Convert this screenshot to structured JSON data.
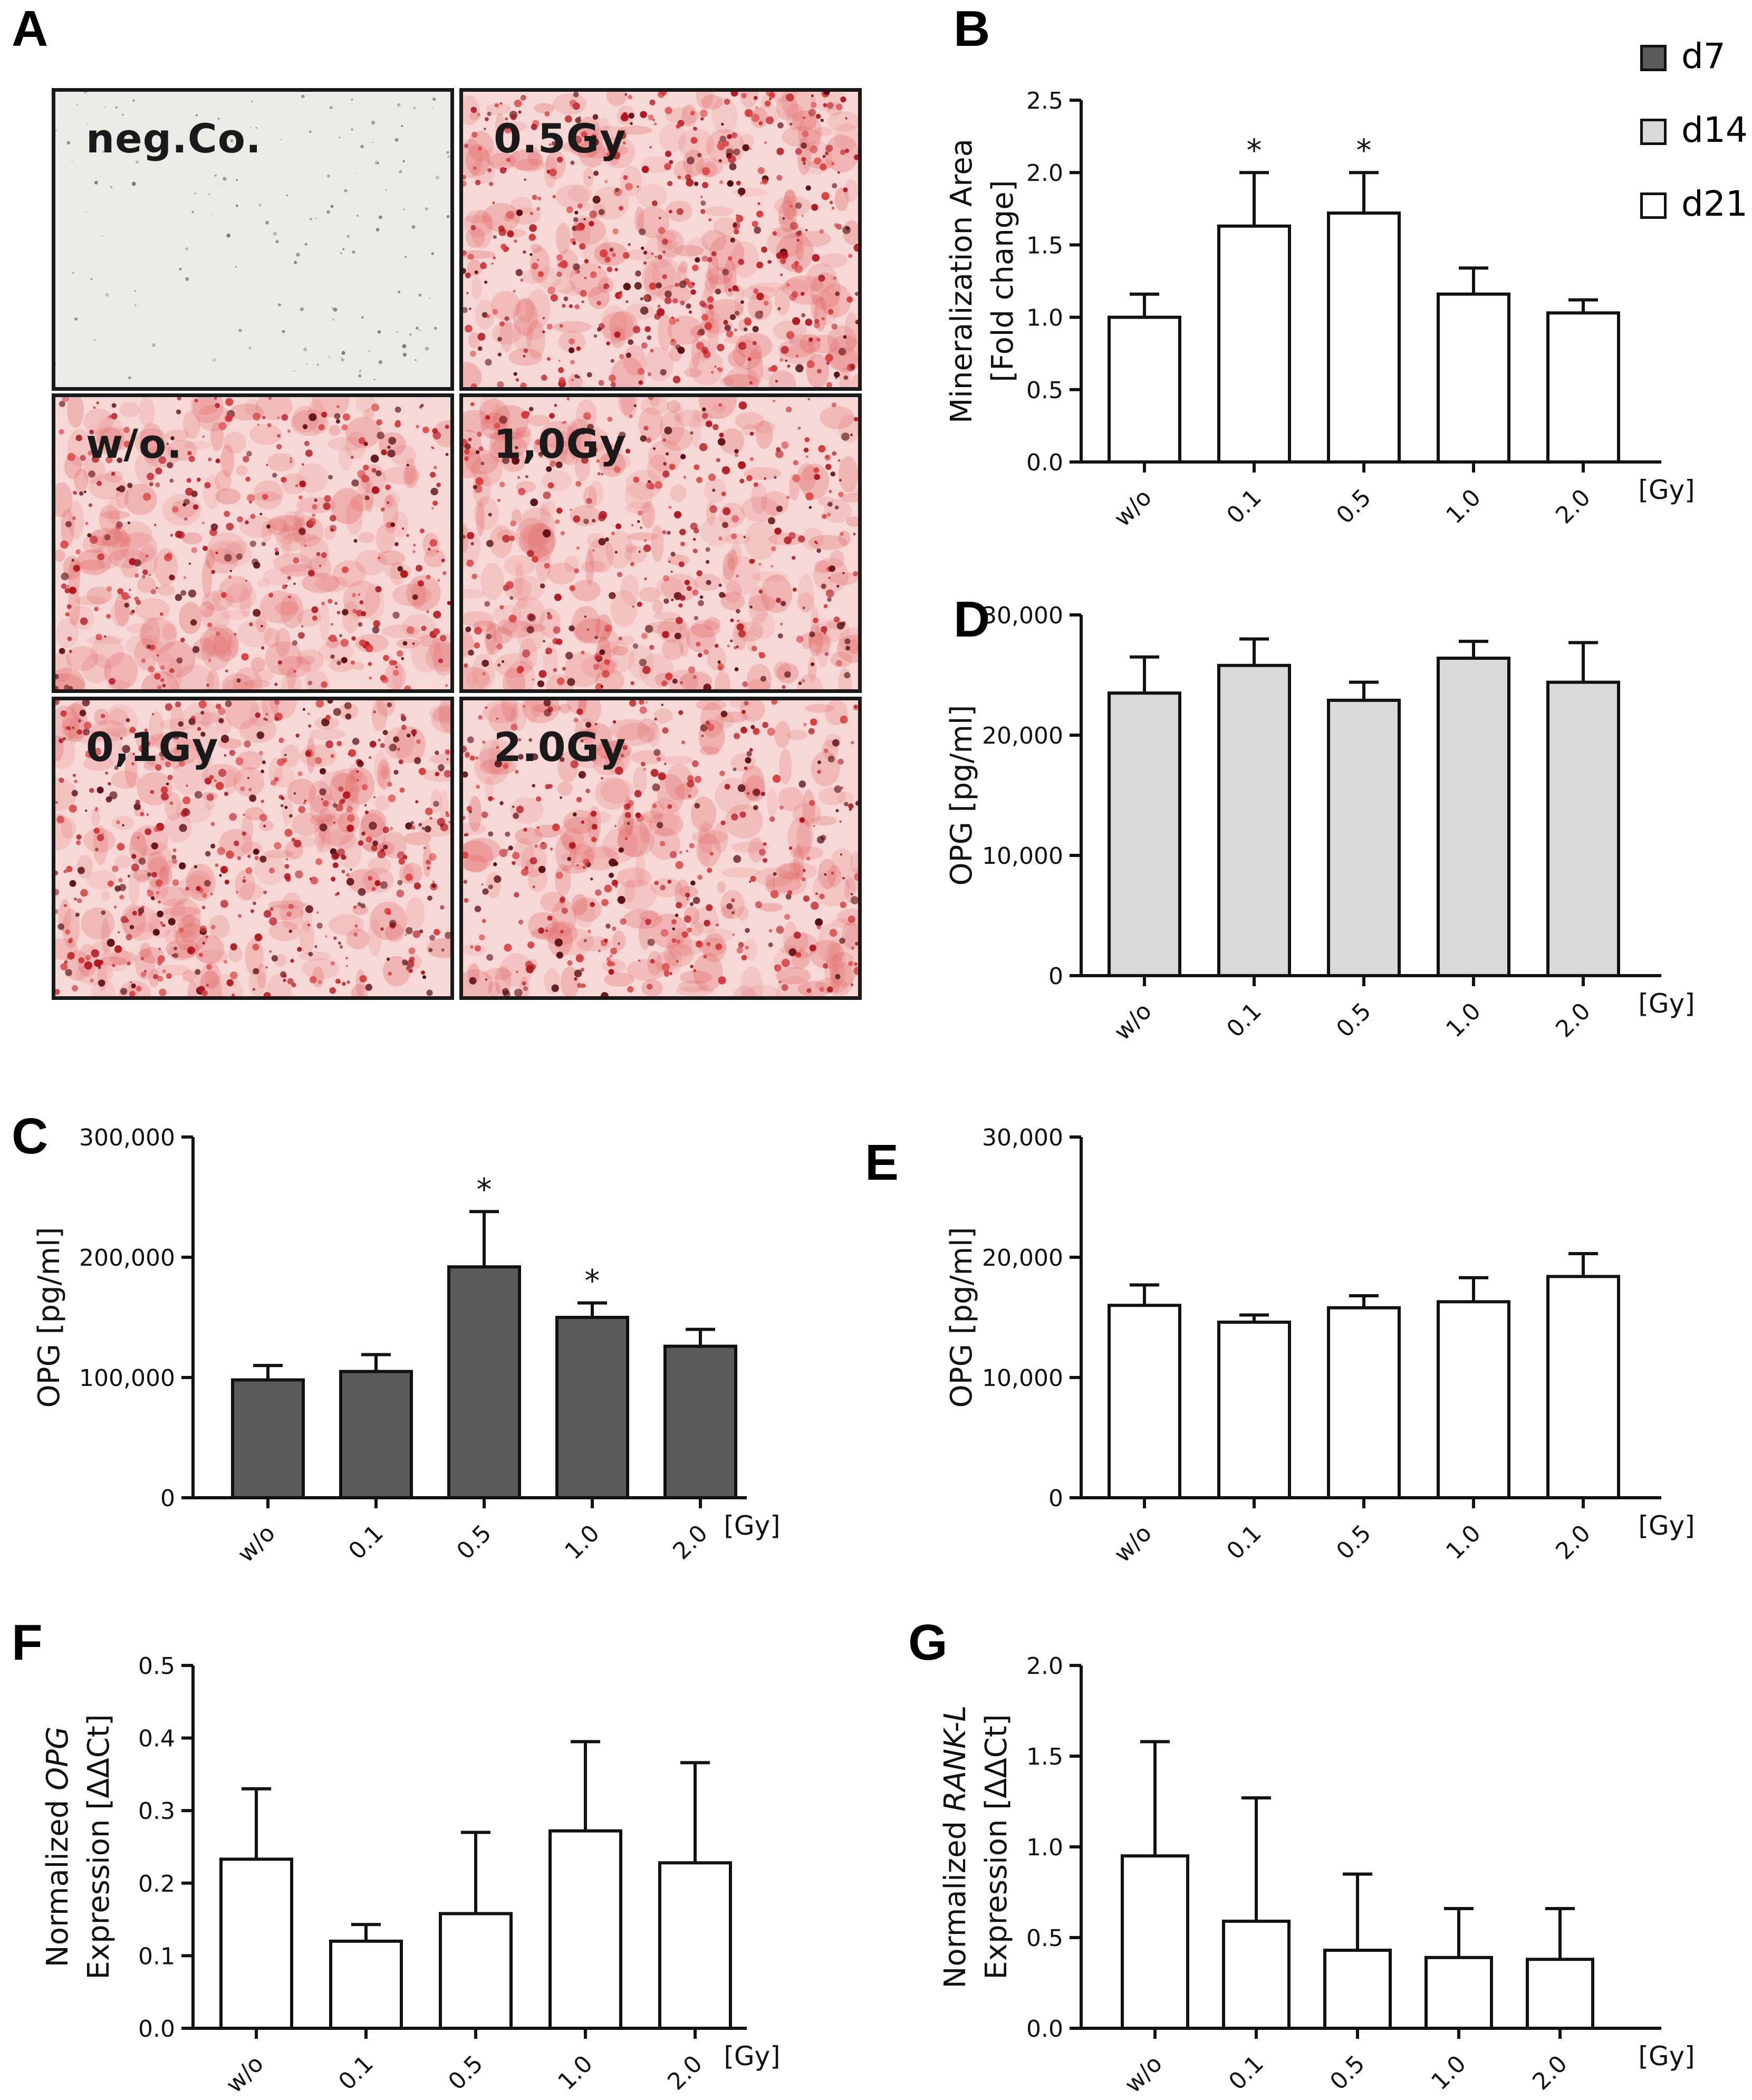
{
  "panel_letters": [
    "A",
    "B",
    "C",
    "D",
    "E",
    "F",
    "G"
  ],
  "micrographs": [
    {
      "label": "neg.Co.",
      "stain": "none"
    },
    {
      "label": "0.5Gy",
      "stain": "alizarin-heavy"
    },
    {
      "label": "w/o.",
      "stain": "alizarin-medium"
    },
    {
      "label": "1,0Gy",
      "stain": "alizarin-medium"
    },
    {
      "label": "0,1Gy",
      "stain": "alizarin-heavy"
    },
    {
      "label": "2.0Gy",
      "stain": "alizarin-medium"
    }
  ],
  "legend": [
    {
      "label": "d7",
      "color": "#5a5a5a"
    },
    {
      "label": "d14",
      "color": "#d9d9d9"
    },
    {
      "label": "d21",
      "color": "#ffffff"
    }
  ],
  "chart_data": [
    {
      "panel": "B",
      "type": "bar",
      "categories": [
        "w/o",
        "0.1",
        "0.5",
        "1.0",
        "2.0"
      ],
      "unit_label": "[Gy]",
      "values": [
        1.0,
        1.63,
        1.72,
        1.16,
        1.03
      ],
      "errors": [
        0.16,
        0.37,
        0.28,
        0.18,
        0.09
      ],
      "significance": [
        "",
        "*",
        "*",
        "",
        ""
      ],
      "ylabel": [
        "Mineralization Area",
        "[Fold change]"
      ],
      "ylim": [
        0,
        2.5
      ],
      "yticks": [
        "0.0",
        "0.5",
        "1.0",
        "1.5",
        "2.0",
        "2.5"
      ],
      "bar_color": "#ffffff",
      "series": "d21"
    },
    {
      "panel": "D",
      "type": "bar",
      "categories": [
        "w/o",
        "0.1",
        "0.5",
        "1.0",
        "2.0"
      ],
      "unit_label": "[Gy]",
      "values": [
        23500,
        25800,
        22900,
        26400,
        24400
      ],
      "errors": [
        3000,
        2200,
        1500,
        1400,
        3300
      ],
      "significance": [
        "",
        "",
        "",
        "",
        ""
      ],
      "ylabel": [
        "OPG [pg/ml]"
      ],
      "ylim": [
        0,
        30000
      ],
      "yticks": [
        "0",
        "10,000",
        "20,000",
        "30,000"
      ],
      "bar_color": "#d9d9d9",
      "series": "d14"
    },
    {
      "panel": "C",
      "type": "bar",
      "categories": [
        "w/o",
        "0.1",
        "0.5",
        "1.0",
        "2.0"
      ],
      "unit_label": "[Gy]",
      "values": [
        98000,
        105000,
        192000,
        150000,
        126000
      ],
      "errors": [
        12000,
        14000,
        46000,
        12000,
        14000
      ],
      "significance": [
        "",
        "",
        "*",
        "*",
        ""
      ],
      "ylabel": [
        "OPG [pg/ml]"
      ],
      "ylim": [
        0,
        300000
      ],
      "yticks": [
        "0",
        "100,000",
        "200,000",
        "300,000"
      ],
      "bar_color": "#5a5a5a",
      "series": "d7"
    },
    {
      "panel": "E",
      "type": "bar",
      "categories": [
        "w/o",
        "0.1",
        "0.5",
        "1.0",
        "2.0"
      ],
      "unit_label": "[Gy]",
      "values": [
        16000,
        14600,
        15800,
        16300,
        18400
      ],
      "errors": [
        1700,
        600,
        1000,
        2000,
        1900
      ],
      "significance": [
        "",
        "",
        "",
        "",
        ""
      ],
      "ylabel": [
        "OPG [pg/ml]"
      ],
      "ylim": [
        0,
        30000
      ],
      "yticks": [
        "0",
        "10,000",
        "20,000",
        "30,000"
      ],
      "bar_color": "#ffffff",
      "series": "d21"
    },
    {
      "panel": "F",
      "type": "bar",
      "categories": [
        "w/o",
        "0.1",
        "0.5",
        "1.0",
        "2.0"
      ],
      "unit_label": "[Gy]",
      "values": [
        0.233,
        0.12,
        0.158,
        0.272,
        0.228
      ],
      "errors": [
        0.097,
        0.023,
        0.112,
        0.123,
        0.138
      ],
      "significance": [
        "",
        "",
        "",
        "",
        ""
      ],
      "ylabel": [
        "Normalized OPG",
        "Expression [ΔΔCt]"
      ],
      "ylabel_italic": "OPG",
      "ylim": [
        0,
        0.5
      ],
      "yticks": [
        "0.0",
        "0.1",
        "0.2",
        "0.3",
        "0.4",
        "0.5"
      ],
      "bar_color": "#ffffff",
      "series": "d21"
    },
    {
      "panel": "G",
      "type": "bar",
      "categories": [
        "w/o",
        "0.1",
        "0.5",
        "1.0",
        "2.0"
      ],
      "unit_label": "[Gy]",
      "values": [
        0.95,
        0.59,
        0.43,
        0.39,
        0.38
      ],
      "errors": [
        0.63,
        0.68,
        0.42,
        0.27,
        0.28
      ],
      "significance": [
        "",
        "",
        "",
        "",
        ""
      ],
      "ylabel": [
        "Normalized RANK-L",
        "Expression [ΔΔCt]"
      ],
      "ylabel_italic": "RANK-L",
      "ylim": [
        0,
        2.0
      ],
      "yticks": [
        "0.0",
        "0.5",
        "1.0",
        "1.5",
        "2.0"
      ],
      "bar_color": "#ffffff",
      "series": "d21"
    }
  ]
}
